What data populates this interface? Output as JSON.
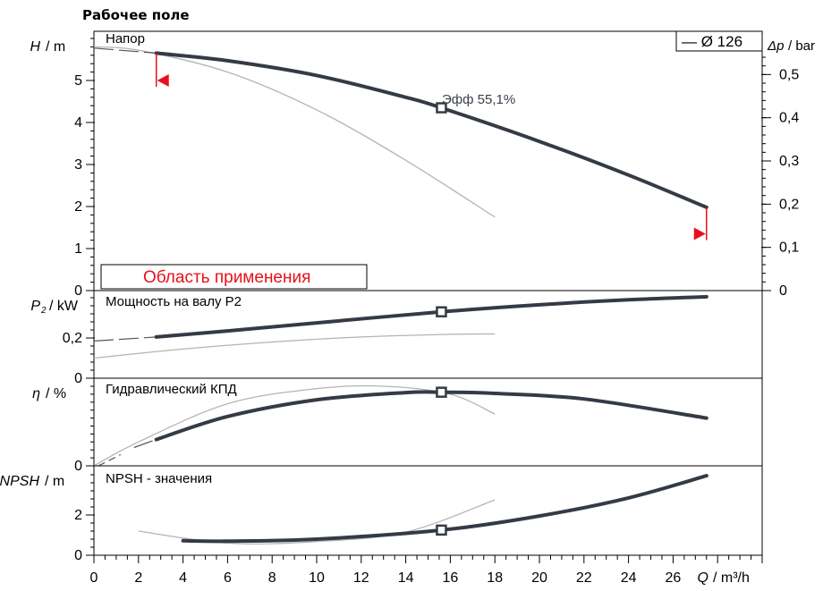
{
  "chart_data": {
    "type": "line",
    "title": "Рабочее поле",
    "x_axis": {
      "label_var": "Q",
      "label_unit": "/ m³/h",
      "range": [
        0,
        30
      ],
      "ticks": [
        0,
        2,
        4,
        6,
        8,
        10,
        12,
        14,
        16,
        18,
        20,
        22,
        24,
        26
      ]
    },
    "legend": {
      "text": "— Ø 126",
      "placement": "top-right"
    },
    "colors": {
      "main": "#353b45",
      "grey": "#b4b4b4",
      "red": "#e8101a"
    },
    "panels": [
      {
        "id": "head",
        "name": "Напор",
        "y_label_var": "H",
        "y_label_unit": "/ m",
        "ylim": [
          0,
          6
        ],
        "y_ticks": [
          0,
          1,
          2,
          3,
          4,
          5
        ],
        "secondary_axis": {
          "label_var": "Δp",
          "label_unit": "/ bar",
          "ticks": [
            0,
            0.1,
            0.2,
            0.3,
            0.4,
            0.5
          ],
          "tick_labels": [
            "0",
            "0,1",
            "0,2",
            "0,3",
            "0,4",
            "0,5"
          ]
        },
        "main_curve": [
          [
            2.8,
            5.65
          ],
          [
            6,
            5.47
          ],
          [
            10,
            5.12
          ],
          [
            14,
            4.6
          ],
          [
            15.6,
            4.35
          ],
          [
            20,
            3.55
          ],
          [
            24,
            2.75
          ],
          [
            27.5,
            1.98
          ]
        ],
        "main_dashed_extension": [
          [
            0,
            5.77
          ],
          [
            2.8,
            5.65
          ]
        ],
        "grey_curve": [
          [
            0,
            5.8
          ],
          [
            2,
            5.72
          ],
          [
            6,
            5.2
          ],
          [
            10,
            4.3
          ],
          [
            14,
            3.1
          ],
          [
            18,
            1.75
          ]
        ],
        "operating_point": [
          15.6,
          4.35
        ],
        "efficiency_label": "Эфф   55,1%",
        "application_range": {
          "from": 1.1,
          "to": 12,
          "label": "Область применения"
        },
        "limit_markers": [
          {
            "x": 2.8,
            "y_top": 5.65,
            "y_bottom": 5.0,
            "direction": "left"
          },
          {
            "x": 27.5,
            "y_top": 1.98,
            "y_bottom": 1.35,
            "direction": "right"
          }
        ]
      },
      {
        "id": "power",
        "name": "Мощность на валу P2",
        "y_label_var": "P",
        "y_label_sub": "2",
        "y_label_unit": "/ kW",
        "ylim": [
          0,
          0.4
        ],
        "y_ticks": [
          0,
          0.2
        ],
        "y_tick_labels": [
          "0",
          "0,2"
        ],
        "main_curve": [
          [
            2.8,
            0.205
          ],
          [
            6,
            0.235
          ],
          [
            10,
            0.275
          ],
          [
            15.6,
            0.33
          ],
          [
            20,
            0.365
          ],
          [
            24,
            0.39
          ],
          [
            27.5,
            0.405
          ]
        ],
        "main_dashed_extension": [
          [
            0,
            0.185
          ],
          [
            2.8,
            0.205
          ]
        ],
        "grey_curve": [
          [
            0,
            0.1
          ],
          [
            4,
            0.145
          ],
          [
            8,
            0.18
          ],
          [
            12,
            0.205
          ],
          [
            16,
            0.218
          ],
          [
            18,
            0.22
          ]
        ],
        "operating_point": [
          15.6,
          0.33
        ]
      },
      {
        "id": "efficiency",
        "name": "Гидравлический КПД",
        "y_label_var": "η",
        "y_label_unit": "/ %",
        "ylim": [
          0,
          100
        ],
        "y_ticks": [
          0
        ],
        "y_tick_labels": [
          "0"
        ],
        "main_curve": [
          [
            2.8,
            33
          ],
          [
            6,
            62
          ],
          [
            10,
            83
          ],
          [
            14,
            92
          ],
          [
            15.6,
            92.5
          ],
          [
            18,
            91
          ],
          [
            22,
            84
          ],
          [
            27.5,
            60
          ]
        ],
        "main_dashed_extension": [
          [
            1.8,
            23
          ],
          [
            2.8,
            33
          ]
        ],
        "grey_curve": [
          [
            0,
            0
          ],
          [
            2,
            30
          ],
          [
            6,
            78
          ],
          [
            10,
            97
          ],
          [
            13,
            100
          ],
          [
            16,
            90
          ],
          [
            18,
            65
          ]
        ],
        "grey_dashed_start": [
          [
            0.2,
            0
          ],
          [
            1.2,
            14
          ]
        ],
        "operating_point": [
          15.6,
          92.5
        ]
      },
      {
        "id": "npsh",
        "name": "NPSH - значения",
        "y_label_var": "NPSH",
        "y_label_unit": "/ m",
        "ylim": [
          0,
          4
        ],
        "y_ticks": [
          0,
          2
        ],
        "y_tick_labels": [
          "0",
          "2"
        ],
        "main_curve": [
          [
            4,
            0.72
          ],
          [
            6,
            0.7
          ],
          [
            10,
            0.8
          ],
          [
            15.6,
            1.25
          ],
          [
            20,
            1.95
          ],
          [
            24,
            2.85
          ],
          [
            27.5,
            3.95
          ]
        ],
        "grey_curve": [
          [
            2,
            1.2
          ],
          [
            6,
            0.6
          ],
          [
            10,
            0.68
          ],
          [
            14,
            1.15
          ],
          [
            18,
            2.75
          ]
        ],
        "operating_point": [
          15.6,
          1.25
        ]
      }
    ]
  }
}
